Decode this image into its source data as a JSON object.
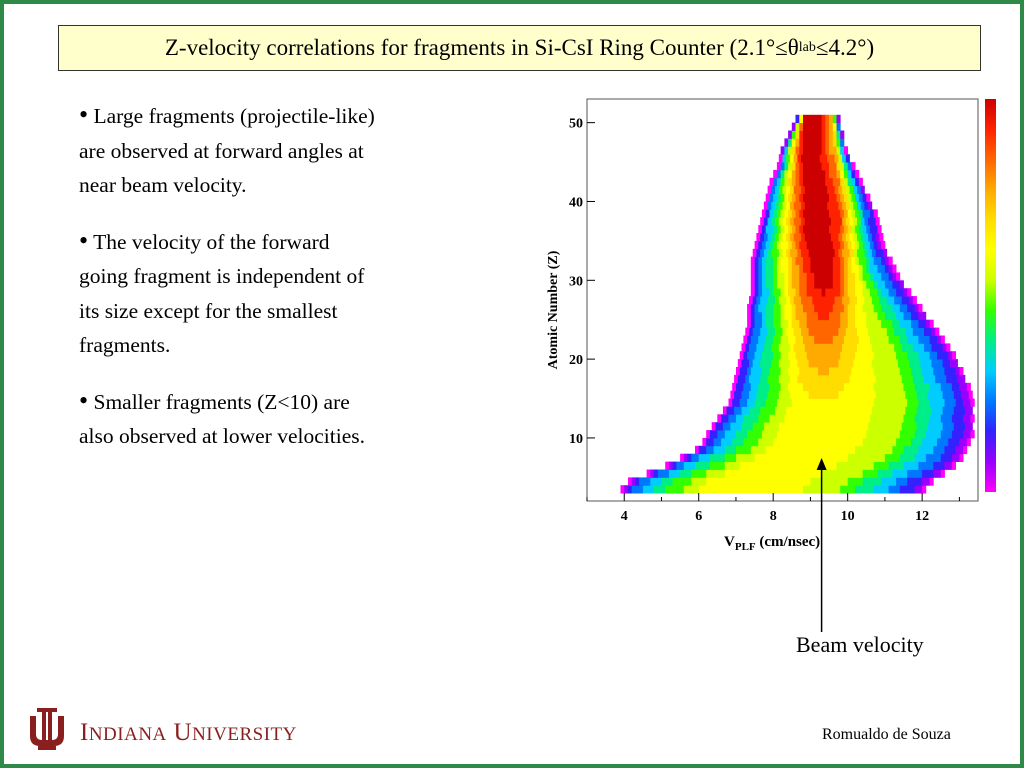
{
  "slide": {
    "title": "Z-velocity correlations for fragments in Si-CsI Ring Counter (2.1°≤θ",
    "title_sub": "lab",
    "title_end": "≤4.2°)",
    "bullets": [
      "Large fragments (projectile-like) are observed at forward angles at near beam velocity.",
      "The velocity of the forward going fragment is independent of its size except for the smallest fragments.",
      "Smaller fragments (Z<10) are also observed at lower velocities."
    ],
    "beam_label": "Beam velocity",
    "author": "Romualdo de Souza",
    "institution_first": "I",
    "institution_first_rest": "NDIANA",
    "institution_second": "U",
    "institution_second_rest": "NIVERSITY",
    "colors": {
      "frame": "#2f8a4a",
      "title_bg": "#ffffcc",
      "logo": "#8a1f1f"
    }
  },
  "chart_data": {
    "type": "heatmap",
    "title": "",
    "xlabel": "V",
    "xlabel_sub": "PLF",
    "xlabel_unit": " (cm/nsec)",
    "ylabel": "Atomic Number (Z)",
    "xlim": [
      3.0,
      13.5
    ],
    "ylim": [
      2,
      53
    ],
    "xticks": [
      4,
      6,
      8,
      10,
      12
    ],
    "yticks": [
      10,
      20,
      30,
      40,
      50
    ],
    "beam_velocity": 9.3,
    "colormap": [
      "#ff00ff",
      "#9900ff",
      "#3322ff",
      "#0077ff",
      "#00ccff",
      "#00ee88",
      "#33ff00",
      "#ccff00",
      "#ffff00",
      "#ffdd00",
      "#ffaa00",
      "#ff6600",
      "#ff2200",
      "#cc0000"
    ],
    "outline": {
      "rows_z": [
        3,
        4,
        5,
        6,
        7,
        8,
        9,
        10,
        12,
        14,
        16,
        18,
        20,
        22,
        24,
        26,
        28,
        30,
        32,
        34,
        36,
        38,
        40,
        42,
        44,
        46,
        48,
        50
      ],
      "left_edge_v": [
        3.9,
        4.1,
        4.6,
        5.1,
        5.5,
        5.9,
        6.1,
        6.2,
        6.5,
        6.8,
        6.9,
        7.0,
        7.1,
        7.2,
        7.3,
        7.3,
        7.4,
        7.4,
        7.4,
        7.5,
        7.6,
        7.7,
        7.8,
        7.9,
        8.1,
        8.2,
        8.4,
        8.6
      ],
      "right_edge_v": [
        12.0,
        12.2,
        12.5,
        12.8,
        13.0,
        13.1,
        13.2,
        13.3,
        13.3,
        13.3,
        13.2,
        13.0,
        12.8,
        12.5,
        12.2,
        11.9,
        11.6,
        11.3,
        11.1,
        10.9,
        10.8,
        10.7,
        10.5,
        10.3,
        10.1,
        9.9,
        9.8,
        9.7
      ]
    }
  }
}
